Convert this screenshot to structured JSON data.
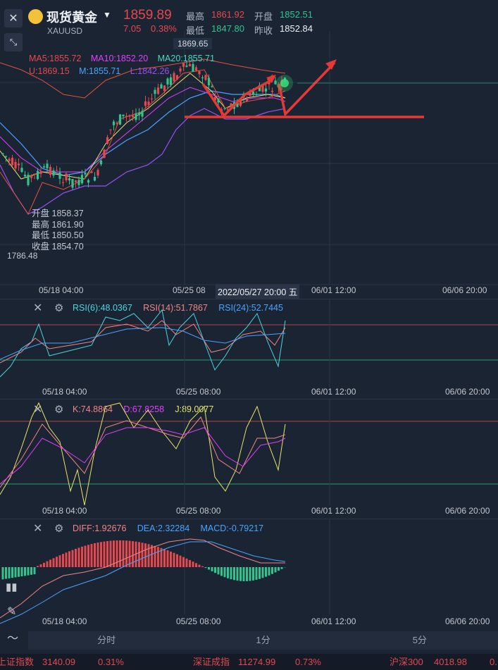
{
  "header": {
    "close_icon": "close-icon",
    "collapse_icon": "collapse-arrows-icon",
    "instrument_name": "现货黄金",
    "instrument_code": "XAUUSD",
    "last_price": "1859.89",
    "change": "7.05",
    "change_pct": "0.38%",
    "high_label": "最高",
    "high_value": "1861.92",
    "open_label": "开盘",
    "open_value": "1852.51",
    "low_label": "最低",
    "low_value": "1847.80",
    "prev_close_label": "昨收",
    "prev_close_value": "1852.84"
  },
  "main_chart": {
    "ma5": "MA5:1855.72",
    "ma10": "MA10:1852.20",
    "ma20": "MA20:1855.71",
    "boll_upper": "U:1869.15",
    "boll_mid": "M:1855.71",
    "boll_lower": "L:1842.26",
    "max_marker": "1869.65",
    "min_marker": "1786.48",
    "info": {
      "open_label": "开盘",
      "open": "1858.37",
      "high_label": "最高",
      "high": "1861.90",
      "low_label": "最低",
      "low": "1850.50",
      "close_label": "收盘",
      "close": "1854.70"
    },
    "x_labels": [
      "05/18 04:00",
      "05/25 08",
      "06/01 12:00",
      "06/06 20:00"
    ],
    "crosshair_time": "2022/05/27 20:00 五"
  },
  "rsi_panel": {
    "rsi6": "RSI(6):48.0367",
    "rsi14": "RSI(14):51.7867",
    "rsi24": "RSI(24):52.7445",
    "x_labels": [
      "05/18 04:00",
      "05/25 08:00",
      "06/01 12:00",
      "06/06 20:00"
    ]
  },
  "kdj_panel": {
    "k": "K:74.8864",
    "d": "D:67.8258",
    "j": "J:89.0077",
    "x_labels": [
      "05/18 04:00",
      "05/25 08:00",
      "06/01 12:00",
      "06/06 20:00"
    ]
  },
  "macd_panel": {
    "diff": "DIFF:1.92676",
    "dea": "DEA:2.32284",
    "macd": "MACD:-0.79217",
    "x_labels": [
      "05/18 04:00",
      "05/25 08:00",
      "06/01 12:00",
      "06/06 20:00"
    ]
  },
  "tabs": [
    "分时",
    "1分",
    "5分"
  ],
  "ticker": {
    "sh_name": "上证指数",
    "sh_value": "3140.09",
    "sh_pct": "0.31%",
    "sz_name": "深证成指",
    "sz_value": "11274.99",
    "sz_pct": "0.73%",
    "hs_name": "沪深300",
    "hs_value": "4018.98",
    "hs_pct": "0."
  },
  "colors": {
    "background": "#1b2433",
    "up": "#e5484d",
    "down": "#31c48d",
    "ma5": "#e8e26a",
    "ma10": "#e040fb",
    "ma20": "#4aa3ff"
  }
}
